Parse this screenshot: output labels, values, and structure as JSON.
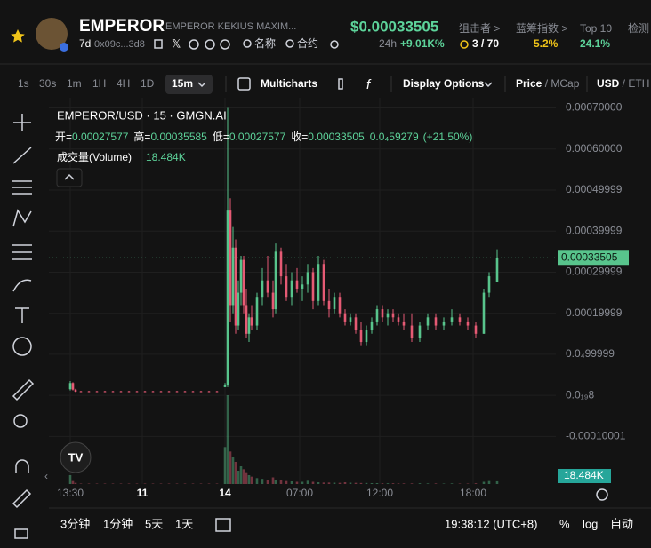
{
  "header": {
    "name": "EMPEROR",
    "full_name": "EMPEROR KEKIUS MAXIM...",
    "age": "7d",
    "address": "0x09c...3d8",
    "links": [
      "名称",
      "合约"
    ],
    "price": "$0.00033505",
    "change_period": "24h",
    "change": "+9.01K%",
    "stats": [
      {
        "label": "狙击者 >",
        "value": "3 / 70"
      },
      {
        "label": "蓝筹指数 >",
        "value": "5.2%"
      },
      {
        "label": "Top 10",
        "value": "24.1%"
      },
      {
        "label": "检测"
      }
    ]
  },
  "toolbar": {
    "intervals": [
      "1s",
      "30s",
      "1m",
      "1H",
      "4H",
      "1D"
    ],
    "selected": "15m",
    "multicharts": "Multicharts",
    "display": "Display Options",
    "price_mode": [
      "Price",
      "MCap"
    ],
    "currency": [
      "USD",
      "ETH"
    ]
  },
  "chart_data": {
    "type": "candlestick",
    "title": "EMPEROR/USD · 15 · GMGN.AI",
    "ohlc": [
      {
        "label": "开=",
        "value": "0.00027577"
      },
      {
        "label": "高=",
        "value": "0.00035585"
      },
      {
        "label": "低=",
        "value": "0.00027577"
      },
      {
        "label": "收=",
        "value": "0.00033505"
      }
    ],
    "change": "0.0₄59279",
    "change_pct": "(+21.50%)",
    "volume_label": "成交量(Volume)",
    "volume_value": "18.484K",
    "up_color": "#58c48c",
    "down_color": "#e65a74",
    "grid": true,
    "ylim": [
      -0.000216,
      0.000725
    ],
    "yticks": [
      {
        "value": 0.0007,
        "label": "0.00070000"
      },
      {
        "value": 0.0006,
        "label": "0.00060000"
      },
      {
        "value": 0.00049999,
        "label": "0.00049999"
      },
      {
        "value": 0.00039999,
        "label": "0.00039999"
      },
      {
        "value": 0.00029999,
        "label": "0.00029999"
      },
      {
        "value": 0.00019999,
        "label": "0.00019999"
      },
      {
        "value": 9.9999e-05,
        "label": "0.0₄99999"
      },
      {
        "value": 8e-20,
        "label": "0.0₁₉8"
      },
      {
        "value": -0.00010001,
        "label": "-0.00010001"
      }
    ],
    "last_price": {
      "value": 0.00033505,
      "label": "0.00033505"
    },
    "xlim": [
      -8,
      182
    ],
    "xticks": [
      {
        "value": 0,
        "label": "13:30"
      },
      {
        "value": 27,
        "label": "11"
      },
      {
        "value": 58,
        "label": "14"
      },
      {
        "value": 86,
        "label": "07:00"
      },
      {
        "value": 116,
        "label": "12:00"
      },
      {
        "value": 151,
        "label": "18:00"
      }
    ],
    "candles": [
      [
        0,
        1.5e-05,
        3.5e-05,
        1.2e-05,
        3e-05
      ],
      [
        1,
        3e-05,
        3.2e-05,
        1.2e-05,
        1.4e-05
      ],
      [
        2,
        1.4e-05,
        1.6e-05,
        8e-06,
        9e-06
      ],
      [
        4,
        1e-05,
        1.1e-05,
        8e-06,
        9e-06
      ],
      [
        7,
        1e-05,
        1.1e-05,
        8e-06,
        9e-06
      ],
      [
        10,
        1e-05,
        1.1e-05,
        8e-06,
        9e-06
      ],
      [
        13,
        1e-05,
        1.1e-05,
        8e-06,
        9e-06
      ],
      [
        16,
        1e-05,
        1.1e-05,
        8e-06,
        9e-06
      ],
      [
        19,
        1e-05,
        1.1e-05,
        8e-06,
        9e-06
      ],
      [
        22,
        1e-05,
        1.1e-05,
        8e-06,
        9e-06
      ],
      [
        25,
        1e-05,
        1.1e-05,
        8e-06,
        9e-06
      ],
      [
        28,
        1e-05,
        1.1e-05,
        8e-06,
        9e-06
      ],
      [
        31,
        1e-05,
        1.1e-05,
        8e-06,
        9e-06
      ],
      [
        34,
        1e-05,
        1.1e-05,
        8e-06,
        9e-06
      ],
      [
        37,
        1e-05,
        1.1e-05,
        8e-06,
        9e-06
      ],
      [
        40,
        1e-05,
        1.1e-05,
        8e-06,
        9e-06
      ],
      [
        43,
        1e-05,
        1.1e-05,
        8e-06,
        9e-06
      ],
      [
        46,
        1e-05,
        1.1e-05,
        8e-06,
        9e-06
      ],
      [
        49,
        1e-05,
        1.1e-05,
        8e-06,
        9e-06
      ],
      [
        52,
        1e-05,
        1.1e-05,
        8e-06,
        9e-06
      ],
      [
        55,
        1e-05,
        1.1e-05,
        8e-06,
        9e-06
      ],
      [
        58,
        2e-05,
        3e-05,
        2e-05,
        2.5e-05
      ],
      [
        59,
        2.5e-05,
        0.0007,
        2e-05,
        0.00045
      ],
      [
        60,
        0.00045,
        0.00048,
        0.00018,
        0.00022
      ],
      [
        61,
        0.00022,
        0.00041,
        0.0002,
        0.00036
      ],
      [
        62,
        0.00036,
        0.00038,
        0.00015,
        0.00017
      ],
      [
        63,
        0.00017,
        0.00028,
        0.00016,
        0.00025
      ],
      [
        64,
        0.00025,
        0.00034,
        0.00022,
        0.00033
      ],
      [
        65,
        0.00033,
        0.00034,
        0.0002,
        0.00022
      ],
      [
        66,
        0.00022,
        0.00026,
        0.00014,
        0.00015
      ],
      [
        67,
        0.00015,
        0.0002,
        0.00013,
        0.00019
      ],
      [
        68,
        0.00019,
        0.00022,
        0.00016,
        0.00017
      ],
      [
        70,
        0.00017,
        0.00025,
        0.00016,
        0.00024
      ],
      [
        72,
        0.00024,
        0.00031,
        0.00022,
        0.00028
      ],
      [
        74,
        0.00028,
        0.00034,
        0.00024,
        0.00025
      ],
      [
        76,
        0.00025,
        0.00028,
        0.00019,
        0.00021
      ],
      [
        77,
        0.00021,
        0.00037,
        0.0002,
        0.00035
      ],
      [
        79,
        0.00035,
        0.00036,
        0.00027,
        0.00029
      ],
      [
        81,
        0.00029,
        0.00032,
        0.00023,
        0.00024
      ],
      [
        83,
        0.00024,
        0.0003,
        0.00022,
        0.00028
      ],
      [
        85,
        0.00028,
        0.00031,
        0.00025,
        0.00026
      ],
      [
        87,
        0.00026,
        0.00029,
        0.00023,
        0.00027
      ],
      [
        89,
        0.00027,
        0.00032,
        0.00025,
        0.0003
      ],
      [
        91,
        0.0003,
        0.00031,
        0.00021,
        0.00023
      ],
      [
        93,
        0.00023,
        0.00034,
        0.00022,
        0.00032
      ],
      [
        95,
        0.00032,
        0.00033,
        0.00022,
        0.00023
      ],
      [
        97,
        0.00023,
        0.00026,
        0.00019,
        0.00021
      ],
      [
        99,
        0.00021,
        0.00025,
        0.0002,
        0.00024
      ],
      [
        101,
        0.00024,
        0.00025,
        0.00019,
        0.0002
      ],
      [
        103,
        0.0002,
        0.00021,
        0.00017,
        0.00018
      ],
      [
        105,
        0.00018,
        0.0002,
        0.00017,
        0.00019
      ],
      [
        107,
        0.00019,
        0.0002,
        0.00015,
        0.00016
      ],
      [
        109,
        0.00016,
        0.00018,
        0.00012,
        0.00013
      ],
      [
        111,
        0.00013,
        0.00017,
        0.00012,
        0.00016
      ],
      [
        113,
        0.00016,
        0.00019,
        0.00015,
        0.00018
      ],
      [
        115,
        0.00018,
        0.00022,
        0.00017,
        0.00021
      ],
      [
        117,
        0.00021,
        0.00022,
        0.00018,
        0.00019
      ],
      [
        119,
        0.00019,
        0.00021,
        0.00017,
        0.0002
      ],
      [
        121,
        0.0002,
        0.00021,
        0.00018,
        0.00019
      ],
      [
        123,
        0.00019,
        0.0002,
        0.00017,
        0.00018
      ],
      [
        125,
        0.00018,
        0.0002,
        0.00016,
        0.00017
      ],
      [
        128,
        0.00017,
        0.0002,
        0.00013,
        0.00014
      ],
      [
        131,
        0.00014,
        0.00018,
        0.00013,
        0.00017
      ],
      [
        134,
        0.00017,
        0.0002,
        0.00016,
        0.00019
      ],
      [
        137,
        0.00019,
        0.0002,
        0.00016,
        0.00017
      ],
      [
        140,
        0.00017,
        0.00019,
        0.00016,
        0.00018
      ],
      [
        143,
        0.00018,
        0.00021,
        0.00017,
        0.00019
      ],
      [
        146,
        0.00019,
        0.0002,
        0.00017,
        0.00018
      ],
      [
        149,
        0.00018,
        0.00019,
        0.00016,
        0.00017
      ],
      [
        152,
        0.00017,
        0.00018,
        0.00014,
        0.00015
      ],
      [
        155,
        0.00015,
        0.00026,
        0.00015,
        0.00025
      ],
      [
        157,
        0.00025,
        0.0003,
        0.00024,
        0.00029
      ],
      [
        160,
        0.00027577,
        0.00035585,
        0.00027577,
        0.00033505
      ]
    ],
    "volume": [
      60000,
      20000,
      8000,
      3000,
      3000,
      3000,
      3000,
      3000,
      3000,
      3000,
      3000,
      3000,
      3000,
      3000,
      3000,
      3000,
      3000,
      3000,
      3000,
      3000,
      3000,
      250000,
      600000,
      220000,
      180000,
      150000,
      90000,
      120000,
      100000,
      80000,
      60000,
      50000,
      40000,
      35000,
      30000,
      45000,
      30000,
      25000,
      20000,
      18000,
      15000,
      15000,
      22000,
      15000,
      12000,
      10000,
      10000,
      9000,
      8000,
      12000,
      9000,
      8000,
      7000,
      7000,
      6000,
      6000,
      5000,
      5000,
      5000,
      4000,
      4000,
      4000,
      5000,
      4000,
      4000,
      3000,
      4000,
      3000,
      3000,
      5000,
      15000,
      20000,
      18484
    ],
    "vlim": [
      0,
      660000
    ]
  },
  "bottom": {
    "ranges": [
      "3分钟",
      "1分钟",
      "5天",
      "1天"
    ],
    "time": "19:38:12 (UTC+8)",
    "options": [
      "%",
      "log",
      "自动"
    ]
  }
}
